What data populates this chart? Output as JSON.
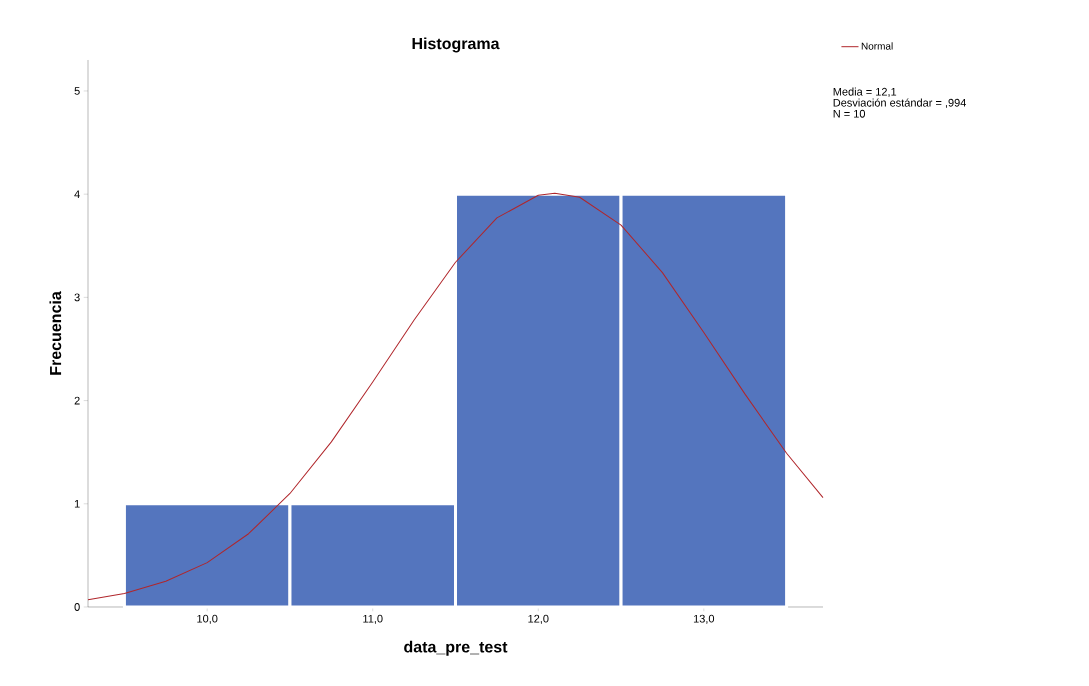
{
  "chart_data": {
    "type": "histogram",
    "title": "Histograma",
    "xlabel": "data_pre_test",
    "ylabel": "Frecuencia",
    "bins": [
      9.5,
      10.5,
      11.5,
      12.5,
      13.5
    ],
    "values": [
      1,
      1,
      4,
      4
    ],
    "color": "#5475be",
    "series": [
      {
        "name": "Normal",
        "type": "line",
        "color": "#b0262b",
        "x": [
          9.28,
          9.5,
          9.75,
          10,
          10.25,
          10.5,
          10.75,
          11,
          11.25,
          11.5,
          11.75,
          12,
          12.1,
          12.25,
          12.5,
          12.75,
          13,
          13.25,
          13.5,
          13.72
        ],
        "values": [
          0.07,
          0.13,
          0.25,
          0.43,
          0.71,
          1.1,
          1.6,
          2.18,
          2.78,
          3.34,
          3.77,
          3.99,
          4.01,
          3.97,
          3.7,
          3.24,
          2.66,
          2.06,
          1.49,
          1.06
        ]
      }
    ],
    "xlim": [
      9.28,
      13.72
    ],
    "ylim": [
      0,
      5.3
    ],
    "xticks": [
      {
        "value": 10,
        "label": "10,0"
      },
      {
        "value": 11,
        "label": "11,0"
      },
      {
        "value": 12,
        "label": "12,0"
      },
      {
        "value": 13,
        "label": "13,0"
      }
    ],
    "yticks": [
      0,
      1,
      2,
      3,
      4,
      5
    ],
    "annotations": [
      "Media = 12,1",
      "Desviación estándar = ,994",
      "N = 10"
    ],
    "legend": "top right",
    "grid": false
  }
}
